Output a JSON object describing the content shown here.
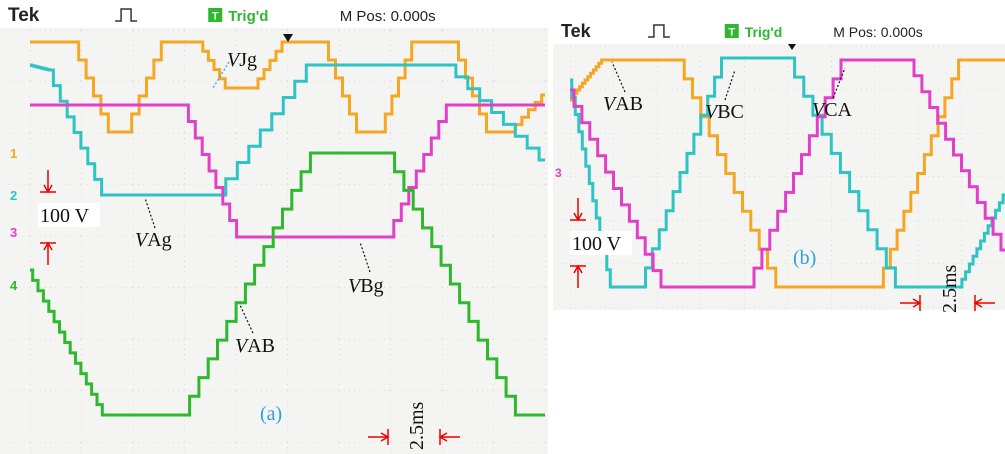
{
  "panels": [
    {
      "header": {
        "brand": "Tek",
        "trigger_icon": "T",
        "trigger": "Trig'd",
        "position": "M Pos: 0.000s"
      },
      "channels": [
        "1",
        "2",
        "3",
        "4"
      ],
      "labels": [
        {
          "v": "V",
          "rest": "Jg"
        },
        {
          "v": "V",
          "rest": "Ag"
        },
        {
          "v": "V",
          "rest": "Bg"
        },
        {
          "v": "V",
          "rest": "AB"
        }
      ],
      "scale": "100 V",
      "time": "2.5ms",
      "caption": "(a)"
    },
    {
      "header": {
        "brand": "Tek",
        "trigger_icon": "T",
        "trigger": "Trig'd",
        "position": "M Pos: 0.000s"
      },
      "channels": [
        "3"
      ],
      "labels": [
        {
          "v": "V",
          "rest": "AB"
        },
        {
          "v": "V",
          "rest": "BC"
        },
        {
          "v": "V",
          "rest": "CA"
        }
      ],
      "scale": "100 V",
      "time": "2.5ms",
      "caption": "(b)"
    }
  ]
}
